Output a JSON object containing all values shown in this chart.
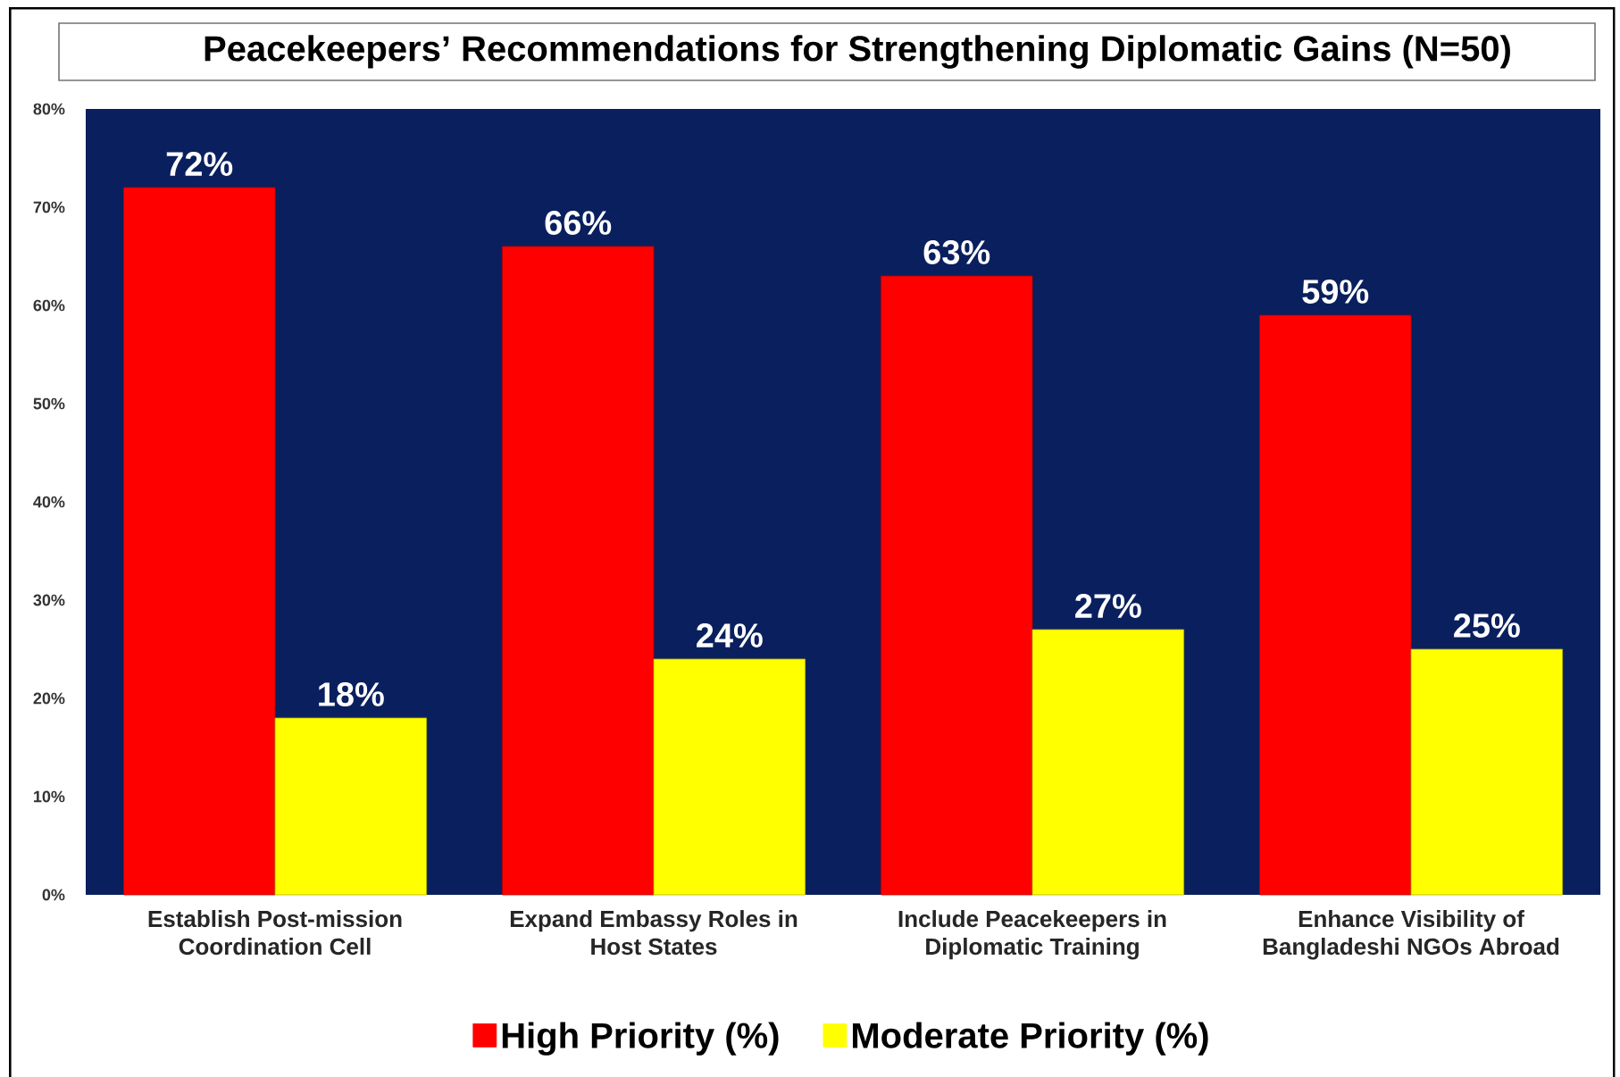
{
  "chart_data": {
    "type": "bar",
    "title": "Peacekeepers’ Recommendations for Strengthening Diplomatic Gains (N=50)",
    "categories": [
      "Establish Post-mission Coordination Cell",
      "Expand Embassy Roles in Host States",
      "Include Peacekeepers in Diplomatic Training",
      "Enhance Visibility of Bangladeshi NGOs Abroad"
    ],
    "series": [
      {
        "name": "High Priority (%)",
        "color": "#ff0000",
        "values": [
          72,
          66,
          63,
          59
        ],
        "value_labels": [
          "72%",
          "66%",
          "63%",
          "59%"
        ]
      },
      {
        "name": "Moderate Priority (%)",
        "color": "#ffff00",
        "values": [
          18,
          24,
          27,
          25
        ],
        "value_labels": [
          "18%",
          "24%",
          "27%",
          "25%"
        ]
      }
    ],
    "ylim": [
      0,
      80
    ],
    "yticks": [
      {
        "value": 0,
        "label": "0%"
      },
      {
        "value": 10,
        "label": "10%"
      },
      {
        "value": 20,
        "label": "20%"
      },
      {
        "value": 30,
        "label": "30%"
      },
      {
        "value": 40,
        "label": "40%"
      },
      {
        "value": 50,
        "label": "50%"
      },
      {
        "value": 60,
        "label": "60%"
      },
      {
        "value": 70,
        "label": "70%"
      },
      {
        "value": 80,
        "label": "80%"
      }
    ],
    "legend": "bottom"
  }
}
